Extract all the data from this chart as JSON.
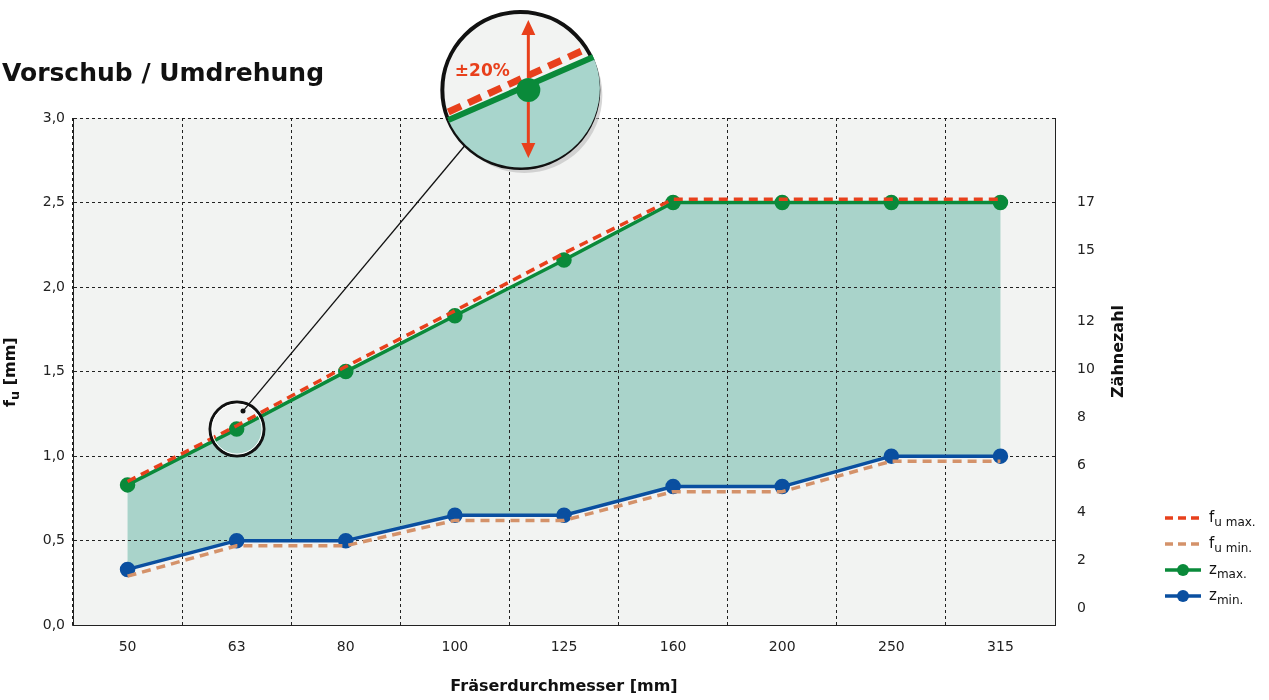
{
  "chart_data": {
    "type": "line",
    "title": "Vorschub / Umdrehung",
    "xlabel": "Fräserdurchmesser [mm]",
    "ylabel": "f$_{u}$ [mm]",
    "y2label": "Zähnezahl",
    "categories": [
      "50",
      "63",
      "80",
      "100",
      "125",
      "160",
      "200",
      "250",
      "315"
    ],
    "ylim": [
      0,
      3
    ],
    "yticks": [
      {
        "value": 0,
        "label": "0,0"
      },
      {
        "value": 0.5,
        "label": "0,5"
      },
      {
        "value": 1,
        "label": "1,0"
      },
      {
        "value": 1.5,
        "label": "1,5"
      },
      {
        "value": 2,
        "label": "2,0"
      },
      {
        "value": 2.5,
        "label": "2,5"
      },
      {
        "value": 3,
        "label": "3,0"
      }
    ],
    "y2lim": [
      -0.71,
      20.54
    ],
    "y2ticks": [
      0,
      2,
      4,
      6,
      8,
      10,
      12,
      15,
      17
    ],
    "grid": true,
    "legend": "bottom right",
    "annotations": [
      "±20%"
    ],
    "series": [
      {
        "name": "f$_{u max.}$",
        "color": "#e8401c",
        "line_style": "dashed",
        "marker": "none",
        "values": [
          0.85,
          1.18,
          1.53,
          1.86,
          2.2,
          2.52,
          2.52,
          2.52,
          2.52
        ]
      },
      {
        "name": "f$_{u min.}$",
        "color": "#d4926a",
        "line_style": "dashed",
        "marker": "none",
        "values": [
          0.29,
          0.47,
          0.47,
          0.62,
          0.62,
          0.79,
          0.79,
          0.97,
          0.97
        ]
      },
      {
        "name": "z$_{max.}$",
        "color": "#0a8a3a",
        "line_style": "solid",
        "marker": "circle",
        "values": [
          0.83,
          1.16,
          1.5,
          1.83,
          2.16,
          2.5,
          2.5,
          2.5,
          2.5
        ],
        "upper": [
          0.83,
          1.16,
          1.5,
          1.83,
          2.16,
          2.5,
          2.5,
          2.5,
          2.5
        ],
        "lower": [
          0.33,
          0.5,
          0.5,
          0.65,
          0.65,
          0.82,
          0.82,
          1.0,
          1.0
        ]
      },
      {
        "name": "z$_{min.}$",
        "color": "#0a4fa0",
        "line_style": "solid",
        "marker": "circle",
        "values": [
          0.33,
          0.5,
          0.5,
          0.65,
          0.65,
          0.82,
          0.82,
          1.0,
          1.0
        ]
      }
    ]
  }
}
